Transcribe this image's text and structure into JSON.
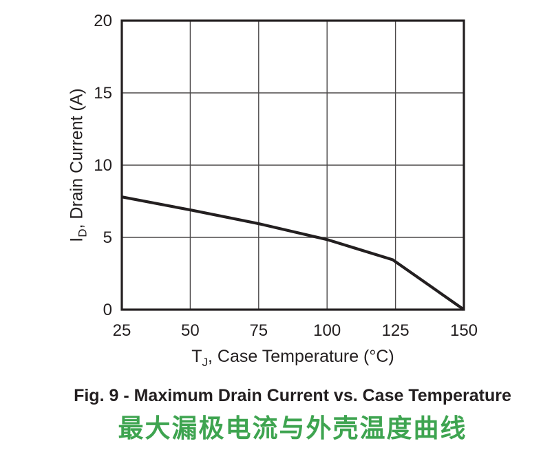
{
  "page": {
    "background": "#ffffff"
  },
  "chart_data": {
    "type": "line",
    "title": "Fig. 9 - Maximum Drain Current vs. Case Temperature",
    "title_cn": "最大漏极电流与外壳温度曲线",
    "xlabel": "TJ, Case Temperature (°C)",
    "ylabel": "ID, Drain Current (A)",
    "xlim": [
      25,
      150
    ],
    "ylim": [
      0,
      20
    ],
    "x_ticks": [
      25,
      50,
      75,
      100,
      125,
      150
    ],
    "y_ticks": [
      0,
      5,
      10,
      15,
      20
    ],
    "grid": true,
    "legend": false,
    "series": [
      {
        "name": "maximum-drain-current",
        "points": [
          [
            25,
            7.8
          ],
          [
            50,
            6.9
          ],
          [
            75,
            5.95
          ],
          [
            100,
            4.85
          ],
          [
            124,
            3.45
          ],
          [
            150,
            0
          ]
        ]
      }
    ]
  },
  "x_axis": {
    "symbol": "T",
    "subscript": "J",
    "rest": ", Case Temperature (°C)"
  },
  "y_axis": {
    "symbol": "I",
    "subscript": "D",
    "rest": ", Drain Current (A)"
  },
  "caption": {
    "text": "Fig. 9 - Maximum Drain Current vs. Case Temperature"
  },
  "caption_cn": {
    "text": "最大漏极电流与外壳温度曲线"
  },
  "colors": {
    "ink": "#231f20",
    "grid": "#4b4849",
    "curve": "#231f20",
    "caption_green": "#3ea450"
  }
}
